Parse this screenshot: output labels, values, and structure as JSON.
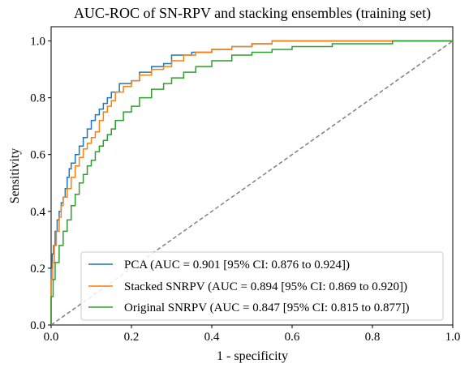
{
  "chart_data": {
    "type": "line",
    "title": "AUC-ROC of SN-RPV and stacking ensembles (training set)",
    "xlabel": "1 - specificity",
    "ylabel": "Sensitivity",
    "xlim": [
      0.0,
      1.0
    ],
    "ylim": [
      0.0,
      1.05
    ],
    "xticks": [
      "0.0",
      "0.2",
      "0.4",
      "0.6",
      "0.8",
      "1.0"
    ],
    "yticks": [
      "0.0",
      "0.2",
      "0.4",
      "0.6",
      "0.8",
      "1.0"
    ],
    "grid": false,
    "legend_position": "lower-right",
    "diagonal": {
      "color": "#808080",
      "style": "dashed"
    },
    "series": [
      {
        "name": "PCA (AUC = 0.901 [95% CI: 0.876 to 0.924])",
        "color": "#1f77b4",
        "points": [
          [
            0,
            0
          ],
          [
            0,
            0.12
          ],
          [
            0.003,
            0.2
          ],
          [
            0.006,
            0.25
          ],
          [
            0.01,
            0.28
          ],
          [
            0.015,
            0.33
          ],
          [
            0.02,
            0.37
          ],
          [
            0.025,
            0.4
          ],
          [
            0.03,
            0.43
          ],
          [
            0.035,
            0.45
          ],
          [
            0.04,
            0.48
          ],
          [
            0.045,
            0.52
          ],
          [
            0.05,
            0.55
          ],
          [
            0.06,
            0.57
          ],
          [
            0.07,
            0.6
          ],
          [
            0.08,
            0.63
          ],
          [
            0.09,
            0.66
          ],
          [
            0.1,
            0.69
          ],
          [
            0.11,
            0.72
          ],
          [
            0.12,
            0.74
          ],
          [
            0.13,
            0.76
          ],
          [
            0.14,
            0.78
          ],
          [
            0.15,
            0.8
          ],
          [
            0.17,
            0.82
          ],
          [
            0.2,
            0.85
          ],
          [
            0.22,
            0.86
          ],
          [
            0.25,
            0.89
          ],
          [
            0.28,
            0.91
          ],
          [
            0.3,
            0.92
          ],
          [
            0.35,
            0.95
          ],
          [
            0.4,
            0.96
          ],
          [
            0.45,
            0.97
          ],
          [
            0.5,
            0.98
          ],
          [
            0.55,
            0.99
          ],
          [
            0.6,
            1.0
          ],
          [
            0.7,
            1.0
          ],
          [
            0.8,
            1.0
          ],
          [
            0.9,
            1.0
          ],
          [
            1.0,
            1.0
          ]
        ]
      },
      {
        "name": "Stacked SNRPV (AUC = 0.894 [95% CI: 0.869 to 0.920])",
        "color": "#ff7f0e",
        "points": [
          [
            0,
            0
          ],
          [
            0,
            0.1
          ],
          [
            0.004,
            0.16
          ],
          [
            0.008,
            0.22
          ],
          [
            0.013,
            0.28
          ],
          [
            0.02,
            0.33
          ],
          [
            0.025,
            0.38
          ],
          [
            0.03,
            0.42
          ],
          [
            0.04,
            0.45
          ],
          [
            0.05,
            0.48
          ],
          [
            0.06,
            0.52
          ],
          [
            0.07,
            0.56
          ],
          [
            0.08,
            0.59
          ],
          [
            0.09,
            0.62
          ],
          [
            0.1,
            0.64
          ],
          [
            0.11,
            0.66
          ],
          [
            0.12,
            0.68
          ],
          [
            0.13,
            0.72
          ],
          [
            0.14,
            0.75
          ],
          [
            0.15,
            0.77
          ],
          [
            0.16,
            0.79
          ],
          [
            0.18,
            0.82
          ],
          [
            0.2,
            0.84
          ],
          [
            0.22,
            0.86
          ],
          [
            0.25,
            0.88
          ],
          [
            0.28,
            0.9
          ],
          [
            0.3,
            0.91
          ],
          [
            0.33,
            0.93
          ],
          [
            0.36,
            0.95
          ],
          [
            0.4,
            0.96
          ],
          [
            0.45,
            0.97
          ],
          [
            0.5,
            0.98
          ],
          [
            0.55,
            0.99
          ],
          [
            0.6,
            1.0
          ],
          [
            0.7,
            1.0
          ],
          [
            0.8,
            1.0
          ],
          [
            0.9,
            1.0
          ],
          [
            1.0,
            1.0
          ]
        ]
      },
      {
        "name": "Original SNRPV (AUC = 0.847 [95% CI: 0.815 to 0.877])",
        "color": "#2ca02c",
        "points": [
          [
            0,
            0
          ],
          [
            0,
            0.04
          ],
          [
            0.005,
            0.1
          ],
          [
            0.01,
            0.16
          ],
          [
            0.02,
            0.22
          ],
          [
            0.03,
            0.28
          ],
          [
            0.04,
            0.33
          ],
          [
            0.05,
            0.37
          ],
          [
            0.06,
            0.42
          ],
          [
            0.07,
            0.46
          ],
          [
            0.08,
            0.5
          ],
          [
            0.09,
            0.53
          ],
          [
            0.1,
            0.56
          ],
          [
            0.11,
            0.58
          ],
          [
            0.12,
            0.61
          ],
          [
            0.13,
            0.63
          ],
          [
            0.14,
            0.65
          ],
          [
            0.15,
            0.67
          ],
          [
            0.16,
            0.69
          ],
          [
            0.18,
            0.72
          ],
          [
            0.2,
            0.75
          ],
          [
            0.22,
            0.77
          ],
          [
            0.25,
            0.8
          ],
          [
            0.28,
            0.83
          ],
          [
            0.3,
            0.85
          ],
          [
            0.33,
            0.87
          ],
          [
            0.36,
            0.89
          ],
          [
            0.4,
            0.91
          ],
          [
            0.45,
            0.93
          ],
          [
            0.5,
            0.95
          ],
          [
            0.55,
            0.96
          ],
          [
            0.6,
            0.97
          ],
          [
            0.65,
            0.98
          ],
          [
            0.7,
            0.98
          ],
          [
            0.75,
            0.99
          ],
          [
            0.8,
            0.99
          ],
          [
            0.85,
            0.99
          ],
          [
            0.9,
            1.0
          ],
          [
            0.95,
            1.0
          ],
          [
            1.0,
            1.0
          ]
        ]
      }
    ]
  }
}
